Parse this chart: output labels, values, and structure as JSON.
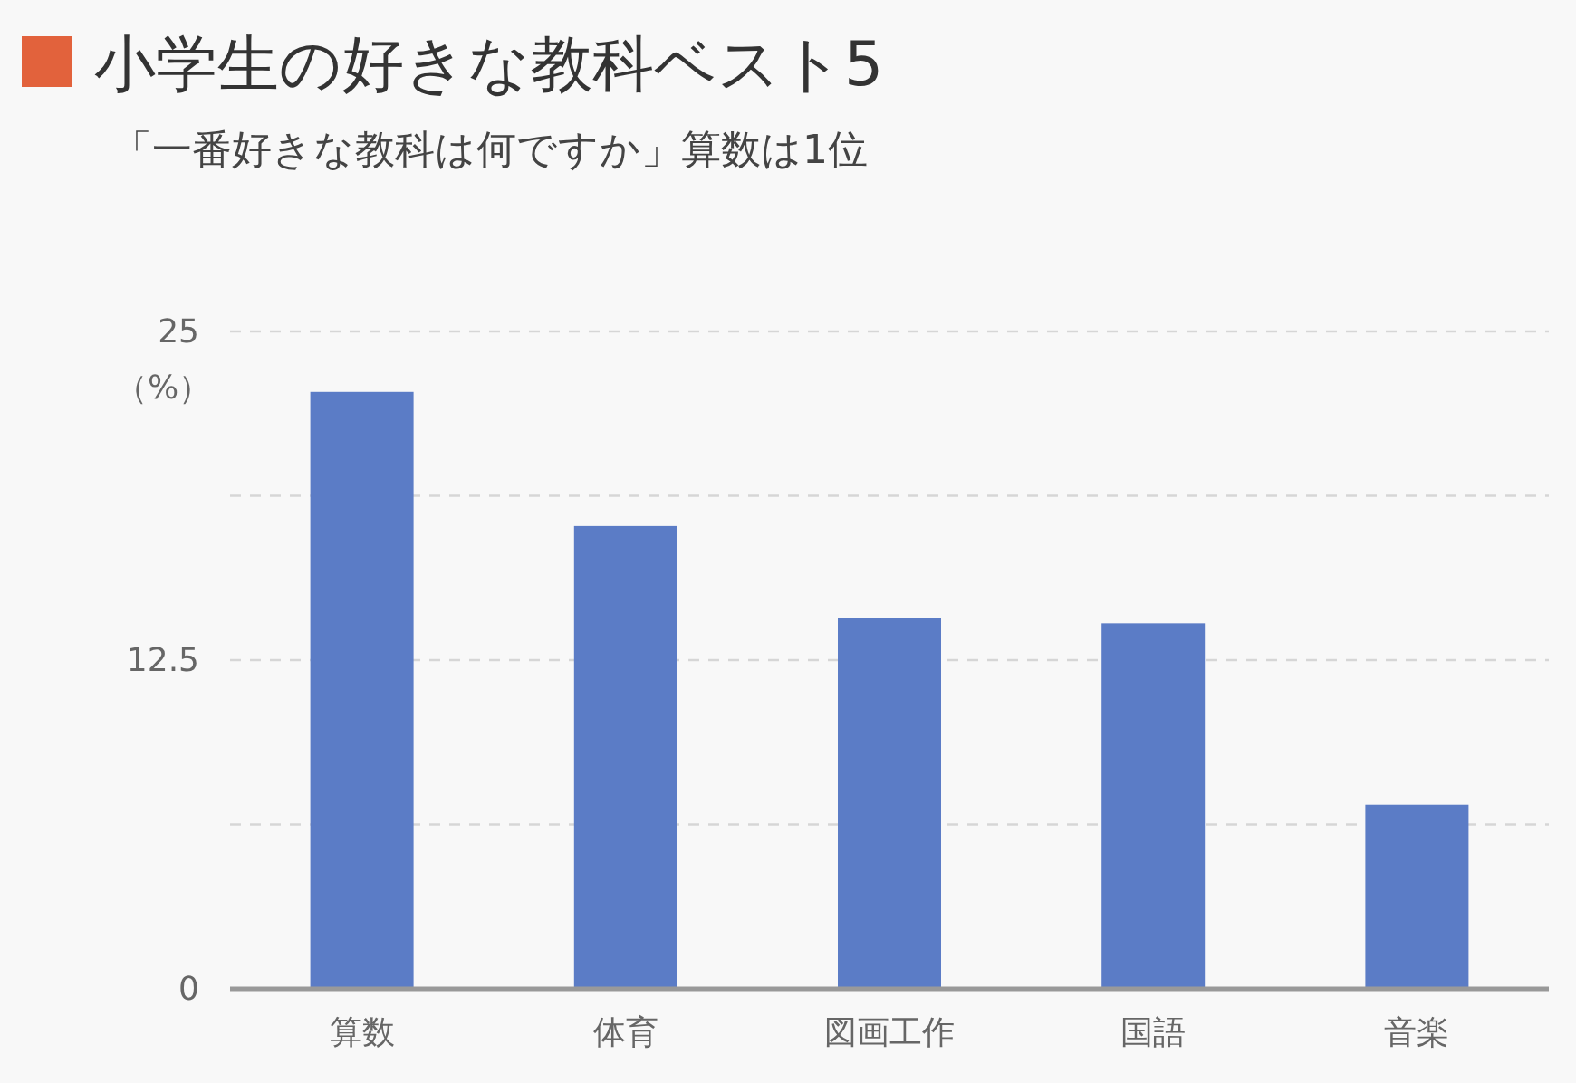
{
  "chart_data": {
    "type": "bar",
    "title": "小学生の好きな教科ベスト5",
    "subtitle": "「一番好きな教科は何ですか」算数は1位",
    "ylabel": "（%）",
    "categories": [
      "算数",
      "体育",
      "図画工作",
      "国語",
      "音楽"
    ],
    "values": [
      22.7,
      17.6,
      14.1,
      13.9,
      7.0
    ],
    "color": "#5b7cc6",
    "ylim": [
      0,
      25
    ],
    "yticks": [
      0,
      {
        "value": 6.25,
        "label": null
      },
      12.5,
      {
        "value": 18.75,
        "label": null
      },
      25
    ],
    "grid": "y",
    "line_style": "dashed"
  }
}
